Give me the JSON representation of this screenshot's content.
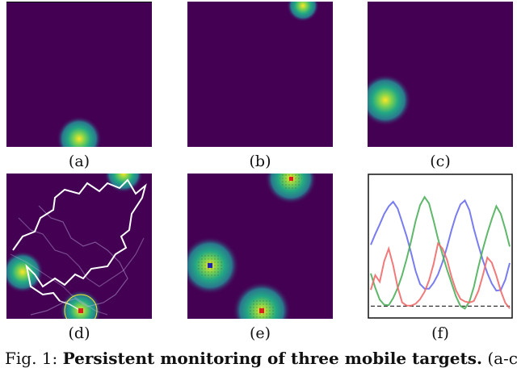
{
  "figure": {
    "labels": {
      "a": "(a)",
      "b": "(b)",
      "c": "(c)",
      "d": "(d)",
      "e": "(e)",
      "f": "(f)"
    },
    "caption": {
      "prefix": "Fig. 1: ",
      "bold": "Persistent monitoring of three mobile targets.",
      "suffix": " (a-c)"
    },
    "colors": {
      "background": "#440154",
      "peak": "#fde725",
      "mid": "#21918c",
      "path_white": "#ffffff",
      "series_red": "#f06a6a",
      "series_green": "#4caf5a",
      "series_blue": "#6a6ef0",
      "dashed": "#333333"
    }
  },
  "chart_data": {
    "type": "line",
    "series": [
      {
        "values": [
          0.55,
          0.62,
          0.7,
          0.8,
          0.88,
          0.92,
          0.85,
          0.72,
          0.6,
          0.48,
          0.35,
          0.25,
          0.2,
          0.18,
          0.22,
          0.3,
          0.42,
          0.55,
          0.68,
          0.78,
          0.86,
          0.9,
          0.84,
          0.7,
          0.56,
          0.42,
          0.3,
          0.22,
          0.18,
          0.2,
          0.28,
          0.4
        ]
      },
      {
        "values": [
          0.3,
          0.2,
          0.12,
          0.08,
          0.06,
          0.1,
          0.18,
          0.3,
          0.45,
          0.6,
          0.75,
          0.86,
          0.92,
          0.88,
          0.76,
          0.62,
          0.48,
          0.34,
          0.22,
          0.12,
          0.06,
          0.05,
          0.1,
          0.2,
          0.35,
          0.5,
          0.65,
          0.78,
          0.88,
          0.8,
          0.66,
          0.52
        ]
      },
      {
        "values": [
          0.2,
          0.32,
          0.25,
          0.4,
          0.5,
          0.38,
          0.22,
          0.1,
          0.06,
          0.04,
          0.05,
          0.1,
          0.18,
          0.28,
          0.4,
          0.55,
          0.5,
          0.42,
          0.3,
          0.2,
          0.12,
          0.08,
          0.06,
          0.08,
          0.18,
          0.32,
          0.46,
          0.4,
          0.28,
          0.16,
          0.08,
          0.05
        ]
      }
    ],
    "ylim": [
      0,
      1
    ],
    "dashed_level": 0.05
  }
}
